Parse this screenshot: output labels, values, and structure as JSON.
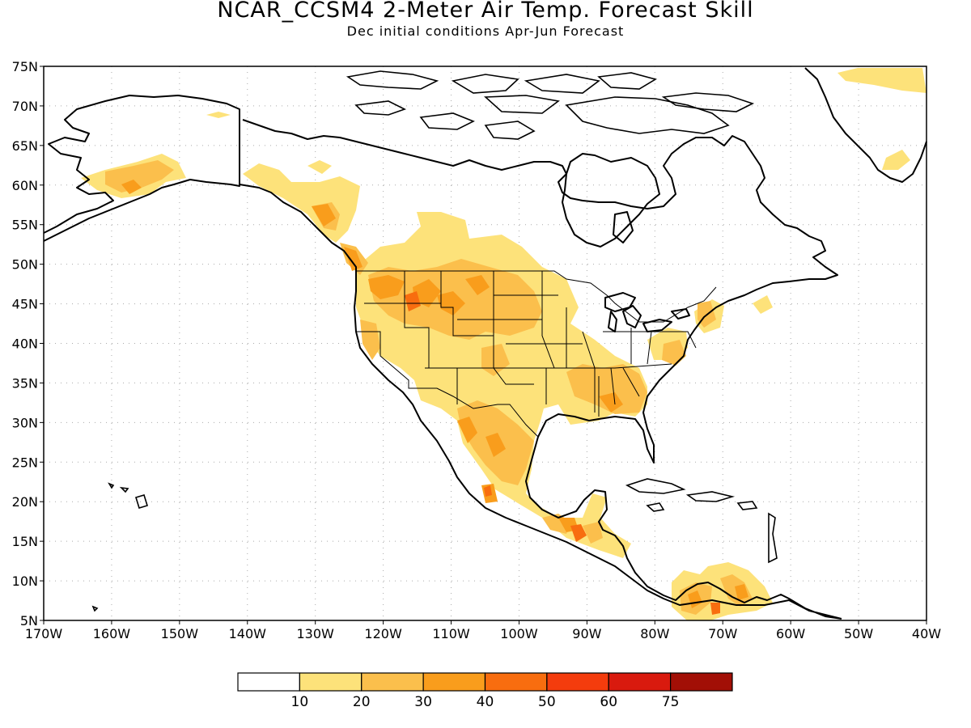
{
  "title": "NCAR_CCSM4 2-Meter Air Temp. Forecast Skill",
  "subtitle": "Dec initial conditions   Apr-Jun Forecast",
  "map": {
    "lon_range": [
      -170,
      -40
    ],
    "lat_range": [
      5,
      75
    ],
    "lon_ticks": [
      {
        "value": -170,
        "label": "170W"
      },
      {
        "value": -160,
        "label": "160W"
      },
      {
        "value": -150,
        "label": "150W"
      },
      {
        "value": -140,
        "label": "140W"
      },
      {
        "value": -130,
        "label": "130W"
      },
      {
        "value": -120,
        "label": "120W"
      },
      {
        "value": -110,
        "label": "110W"
      },
      {
        "value": -100,
        "label": "100W"
      },
      {
        "value": -90,
        "label": "90W"
      },
      {
        "value": -80,
        "label": "80W"
      },
      {
        "value": -70,
        "label": "70W"
      },
      {
        "value": -60,
        "label": "60W"
      },
      {
        "value": -50,
        "label": "50W"
      },
      {
        "value": -40,
        "label": "40W"
      }
    ],
    "lat_ticks": [
      {
        "value": 5,
        "label": "5N"
      },
      {
        "value": 10,
        "label": "10N"
      },
      {
        "value": 15,
        "label": "15N"
      },
      {
        "value": 20,
        "label": "20N"
      },
      {
        "value": 25,
        "label": "25N"
      },
      {
        "value": 30,
        "label": "30N"
      },
      {
        "value": 35,
        "label": "35N"
      },
      {
        "value": 40,
        "label": "40N"
      },
      {
        "value": 45,
        "label": "45N"
      },
      {
        "value": 50,
        "label": "50N"
      },
      {
        "value": 55,
        "label": "55N"
      },
      {
        "value": 60,
        "label": "60N"
      },
      {
        "value": 65,
        "label": "65N"
      },
      {
        "value": 70,
        "label": "70N"
      },
      {
        "value": 75,
        "label": "75N"
      }
    ],
    "grid": "dotted"
  },
  "colorbar": {
    "bins": [
      {
        "color": "#ffffff"
      },
      {
        "color": "#fde27a"
      },
      {
        "color": "#fbbf4c"
      },
      {
        "color": "#f99d1c"
      },
      {
        "color": "#f86d0f"
      },
      {
        "color": "#f43c0d"
      },
      {
        "color": "#d91a0e"
      },
      {
        "color": "#a20f06"
      }
    ],
    "labels": [
      "10",
      "20",
      "30",
      "40",
      "50",
      "60",
      "75"
    ]
  }
}
